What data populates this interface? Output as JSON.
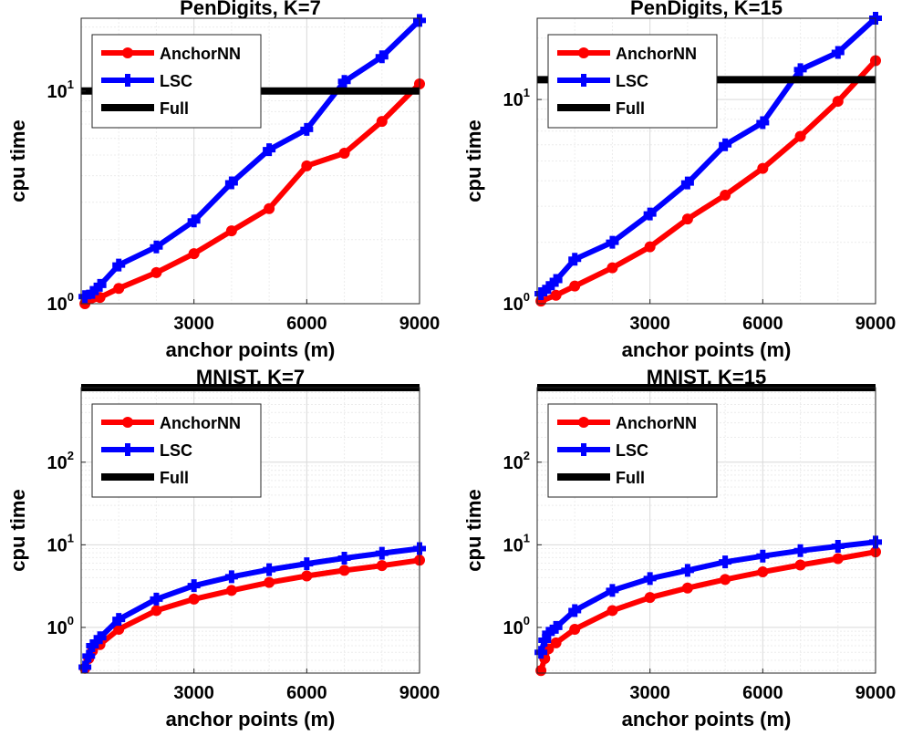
{
  "chart_data": [
    {
      "type": "line",
      "title": "PenDigits, K=7",
      "xlabel": "anchor points (m)",
      "ylabel": "cpu time",
      "yscale": "log",
      "xlim": [
        0,
        9000
      ],
      "ylim": [
        1,
        22
      ],
      "xticks": [
        3000,
        6000,
        9000
      ],
      "yticks": [
        1,
        10
      ],
      "grid": "on",
      "legend_location": "top-left",
      "series": [
        {
          "name": "AnchorNN",
          "color": "#ff0000",
          "marker": "circle",
          "x": [
            100,
            500,
            1000,
            2000,
            3000,
            4000,
            5000,
            6000,
            7000,
            8000,
            9000
          ],
          "y": [
            1.0,
            1.07,
            1.18,
            1.4,
            1.72,
            2.2,
            2.8,
            4.45,
            5.1,
            7.2,
            10.8
          ]
        },
        {
          "name": "LSC",
          "color": "#0000ff",
          "marker": "plus",
          "x": [
            100,
            300,
            500,
            1000,
            2000,
            3000,
            4000,
            5000,
            6000,
            7000,
            8000,
            9000
          ],
          "y": [
            1.08,
            1.13,
            1.22,
            1.52,
            1.85,
            2.45,
            3.7,
            5.3,
            6.6,
            11.1,
            14.5,
            21.5
          ]
        },
        {
          "name": "Full",
          "color": "#000000",
          "marker": "none",
          "x": [
            0,
            9000
          ],
          "y": [
            10.0,
            10.0
          ]
        }
      ]
    },
    {
      "type": "line",
      "title": "PenDigits, K=15",
      "xlabel": "anchor points (m)",
      "ylabel": "cpu time",
      "yscale": "log",
      "xlim": [
        0,
        9000
      ],
      "ylim": [
        1,
        25
      ],
      "xticks": [
        3000,
        6000,
        9000
      ],
      "yticks": [
        1,
        10
      ],
      "grid": "on",
      "legend_location": "top-left",
      "series": [
        {
          "name": "AnchorNN",
          "color": "#ff0000",
          "marker": "circle",
          "x": [
            100,
            500,
            1000,
            2000,
            3000,
            4000,
            5000,
            6000,
            7000,
            8000,
            9000
          ],
          "y": [
            1.03,
            1.1,
            1.22,
            1.5,
            1.9,
            2.6,
            3.4,
            4.6,
            6.6,
            9.8,
            15.5
          ]
        },
        {
          "name": "LSC",
          "color": "#0000ff",
          "marker": "plus",
          "x": [
            100,
            300,
            500,
            1000,
            2000,
            3000,
            4000,
            5000,
            6000,
            7000,
            8000,
            9000
          ],
          "y": [
            1.12,
            1.2,
            1.3,
            1.65,
            2.0,
            2.75,
            3.9,
            6.0,
            7.7,
            14.0,
            17.0,
            25.0
          ]
        },
        {
          "name": "Full",
          "color": "#000000",
          "marker": "none",
          "x": [
            0,
            9000
          ],
          "y": [
            12.5,
            12.5
          ]
        }
      ]
    },
    {
      "type": "line",
      "title": "MNIST, K=7",
      "xlabel": "anchor points (m)",
      "ylabel": "cpu time",
      "yscale": "log",
      "xlim": [
        0,
        9000
      ],
      "ylim": [
        0.28,
        800
      ],
      "xticks": [
        3000,
        6000,
        9000
      ],
      "yticks": [
        1,
        10,
        100
      ],
      "grid": "on",
      "legend_location": "top-left",
      "series": [
        {
          "name": "AnchorNN",
          "color": "#ff0000",
          "marker": "circle",
          "x": [
            100,
            200,
            300,
            500,
            1000,
            2000,
            3000,
            4000,
            5000,
            6000,
            7000,
            8000,
            9000
          ],
          "y": [
            0.32,
            0.42,
            0.52,
            0.62,
            0.95,
            1.6,
            2.2,
            2.8,
            3.5,
            4.2,
            4.9,
            5.6,
            6.5
          ]
        },
        {
          "name": "LSC",
          "color": "#0000ff",
          "marker": "plus",
          "x": [
            100,
            200,
            300,
            500,
            1000,
            2000,
            3000,
            4000,
            5000,
            6000,
            7000,
            8000,
            9000
          ],
          "y": [
            0.33,
            0.45,
            0.6,
            0.75,
            1.25,
            2.2,
            3.2,
            4.1,
            5.0,
            5.9,
            6.9,
            7.9,
            9.0
          ]
        },
        {
          "name": "Full",
          "color": "#000000",
          "marker": "none",
          "x": [
            0,
            9000
          ],
          "y": [
            800,
            800
          ]
        }
      ]
    },
    {
      "type": "line",
      "title": "MNIST, K=15",
      "xlabel": "anchor points (m)",
      "ylabel": "cpu time",
      "yscale": "log",
      "xlim": [
        0,
        9000
      ],
      "ylim": [
        0.28,
        800
      ],
      "xticks": [
        3000,
        6000,
        9000
      ],
      "yticks": [
        1,
        10,
        100
      ],
      "grid": "on",
      "legend_location": "top-left",
      "series": [
        {
          "name": "AnchorNN",
          "color": "#ff0000",
          "marker": "circle",
          "x": [
            100,
            200,
            300,
            500,
            1000,
            2000,
            3000,
            4000,
            5000,
            6000,
            7000,
            8000,
            9000
          ],
          "y": [
            0.3,
            0.42,
            0.55,
            0.65,
            0.95,
            1.6,
            2.3,
            3.0,
            3.8,
            4.7,
            5.7,
            6.8,
            8.2
          ]
        },
        {
          "name": "LSC",
          "color": "#0000ff",
          "marker": "plus",
          "x": [
            100,
            200,
            300,
            500,
            1000,
            2000,
            3000,
            4000,
            5000,
            6000,
            7000,
            8000,
            9000
          ],
          "y": [
            0.5,
            0.7,
            0.85,
            1.0,
            1.6,
            2.8,
            3.9,
            4.9,
            6.2,
            7.3,
            8.5,
            9.6,
            10.8
          ]
        },
        {
          "name": "Full",
          "color": "#000000",
          "marker": "none",
          "x": [
            0,
            9000
          ],
          "y": [
            800,
            800
          ]
        }
      ]
    }
  ]
}
